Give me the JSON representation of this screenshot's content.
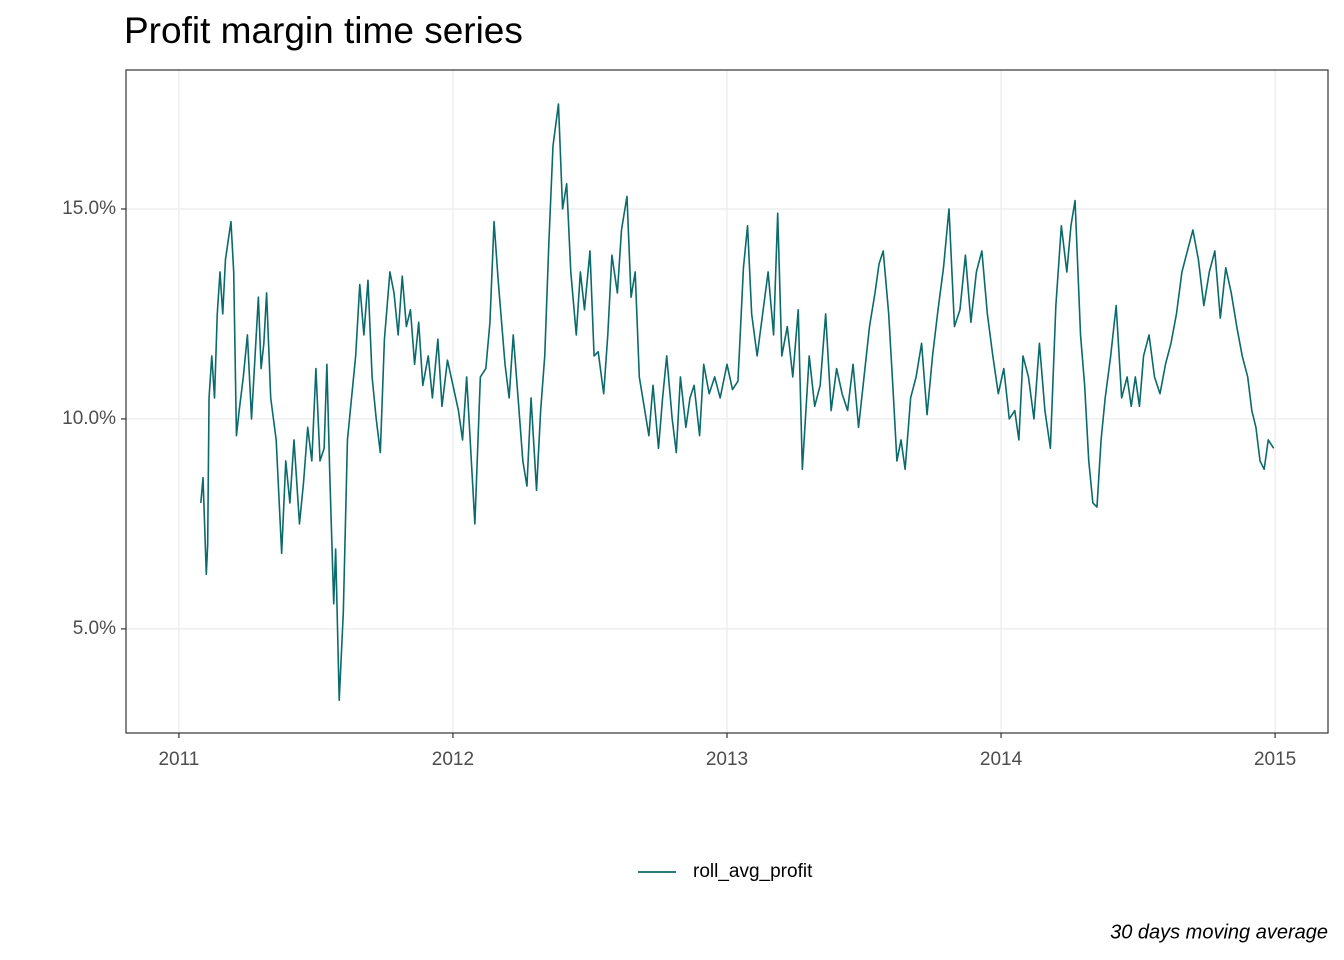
{
  "chart_data": {
    "type": "line",
    "title": "Profit margin time series",
    "caption": "30 days moving average",
    "x": [
      2011.08,
      2011.088,
      2011.1,
      2011.105,
      2011.11,
      2011.12,
      2011.13,
      2011.14,
      2011.15,
      2011.16,
      2011.17,
      2011.19,
      2011.2,
      2011.21,
      2011.22,
      2011.235,
      2011.25,
      2011.265,
      2011.29,
      2011.3,
      2011.31,
      2011.32,
      2011.335,
      2011.355,
      2011.375,
      2011.39,
      2011.405,
      2011.42,
      2011.44,
      2011.455,
      2011.47,
      2011.485,
      2011.5,
      2011.515,
      2011.53,
      2011.54,
      2011.55,
      2011.565,
      2011.572,
      2011.585,
      2011.6,
      2011.615,
      2011.63,
      2011.645,
      2011.66,
      2011.675,
      2011.69,
      2011.705,
      2011.72,
      2011.735,
      2011.75,
      2011.77,
      2011.785,
      2011.8,
      2011.815,
      2011.83,
      2011.845,
      2011.86,
      2011.875,
      2011.89,
      2011.91,
      2011.925,
      2011.945,
      2011.96,
      2011.98,
      2012.0,
      2012.02,
      2012.035,
      2012.05,
      2012.08,
      2012.1,
      2012.12,
      2012.135,
      2012.15,
      2012.165,
      2012.19,
      2012.205,
      2012.22,
      2012.24,
      2012.255,
      2012.27,
      2012.285,
      2012.305,
      2012.32,
      2012.335,
      2012.35,
      2012.365,
      2012.385,
      2012.4,
      2012.415,
      2012.43,
      2012.45,
      2012.465,
      2012.48,
      2012.5,
      2012.515,
      2012.53,
      2012.55,
      2012.565,
      2012.58,
      2012.6,
      2012.615,
      2012.635,
      2012.65,
      2012.665,
      2012.68,
      2012.7,
      2012.715,
      2012.73,
      2012.75,
      2012.765,
      2012.78,
      2012.8,
      2012.815,
      2012.83,
      2012.85,
      2012.865,
      2012.88,
      2012.9,
      2012.915,
      2012.935,
      2012.955,
      2012.975,
      2013.0,
      2013.02,
      2013.04,
      2013.06,
      2013.075,
      2013.09,
      2013.11,
      2013.13,
      2013.15,
      2013.17,
      2013.185,
      2013.2,
      2013.22,
      2013.24,
      2013.26,
      2013.275,
      2013.3,
      2013.32,
      2013.34,
      2013.36,
      2013.38,
      2013.4,
      2013.42,
      2013.44,
      2013.46,
      2013.48,
      2013.5,
      2013.52,
      2013.54,
      2013.555,
      2013.57,
      2013.59,
      2013.605,
      2013.62,
      2013.635,
      2013.65,
      2013.67,
      2013.69,
      2013.71,
      2013.73,
      2013.75,
      2013.77,
      2013.79,
      2013.81,
      2013.83,
      2013.85,
      2013.87,
      2013.89,
      2013.91,
      2013.93,
      2013.95,
      2013.97,
      2013.99,
      2014.01,
      2014.03,
      2014.05,
      2014.065,
      2014.08,
      2014.1,
      2014.12,
      2014.14,
      2014.16,
      2014.18,
      2014.2,
      2014.22,
      2014.24,
      2014.255,
      2014.27,
      2014.29,
      2014.305,
      2014.32,
      2014.335,
      2014.35,
      2014.365,
      2014.38,
      2014.4,
      2014.42,
      2014.44,
      2014.46,
      2014.475,
      2014.49,
      2014.505,
      2014.52,
      2014.54,
      2014.56,
      2014.58,
      2014.6,
      2014.62,
      2014.64,
      2014.66,
      2014.68,
      2014.7,
      2014.72,
      2014.74,
      2014.76,
      2014.78,
      2014.8,
      2014.82,
      2014.84,
      2014.86,
      2014.88,
      2014.9,
      2014.915,
      2014.93,
      2014.945,
      2014.96,
      2014.975,
      2014.995
    ],
    "series": [
      {
        "name": "roll_avg_profit",
        "color": "#0b6a6b",
        "values": [
          8.0,
          8.6,
          6.3,
          7.0,
          10.5,
          11.5,
          10.5,
          12.5,
          13.5,
          12.5,
          13.8,
          14.7,
          13.5,
          9.6,
          10.2,
          11.0,
          12.0,
          10.0,
          12.9,
          11.2,
          11.8,
          13.0,
          10.5,
          9.5,
          6.8,
          9.0,
          8.0,
          9.5,
          7.5,
          8.5,
          9.8,
          9.0,
          11.2,
          9.0,
          9.3,
          11.3,
          8.8,
          5.6,
          6.9,
          3.3,
          5.4,
          9.5,
          10.5,
          11.5,
          13.2,
          12.0,
          13.3,
          11.0,
          10.0,
          9.2,
          11.9,
          13.5,
          13.0,
          12.0,
          13.4,
          12.2,
          12.6,
          11.3,
          12.3,
          10.8,
          11.5,
          10.5,
          11.9,
          10.3,
          11.4,
          10.8,
          10.2,
          9.5,
          11.0,
          7.5,
          11.0,
          11.2,
          12.3,
          14.7,
          13.3,
          11.3,
          10.5,
          12.0,
          10.3,
          9.0,
          8.4,
          10.5,
          8.3,
          10.2,
          11.5,
          14.2,
          16.5,
          17.5,
          15.0,
          15.6,
          13.5,
          12.0,
          13.5,
          12.6,
          14.0,
          11.5,
          11.6,
          10.6,
          12.0,
          13.9,
          13.0,
          14.5,
          15.3,
          12.9,
          13.5,
          11.0,
          10.2,
          9.6,
          10.8,
          9.3,
          10.5,
          11.5,
          10.0,
          9.2,
          11.0,
          9.8,
          10.5,
          10.8,
          9.6,
          11.3,
          10.6,
          11.0,
          10.5,
          11.3,
          10.7,
          10.9,
          13.6,
          14.6,
          12.5,
          11.5,
          12.5,
          13.5,
          12.0,
          14.9,
          11.5,
          12.2,
          11.0,
          12.6,
          8.8,
          11.5,
          10.3,
          10.8,
          12.5,
          10.2,
          11.2,
          10.6,
          10.2,
          11.3,
          9.8,
          11.0,
          12.2,
          13.0,
          13.7,
          14.0,
          12.5,
          10.8,
          9.0,
          9.5,
          8.8,
          10.5,
          11.0,
          11.8,
          10.1,
          11.5,
          12.6,
          13.6,
          15.0,
          12.2,
          12.6,
          13.9,
          12.3,
          13.5,
          14.0,
          12.5,
          11.5,
          10.6,
          11.2,
          10.0,
          10.2,
          9.5,
          11.5,
          11.0,
          10.0,
          11.8,
          10.2,
          9.3,
          12.7,
          14.6,
          13.5,
          14.6,
          15.2,
          12.0,
          10.8,
          9.0,
          8.0,
          7.9,
          9.5,
          10.5,
          11.5,
          12.7,
          10.5,
          11.0,
          10.3,
          11.0,
          10.3,
          11.5,
          12.0,
          11.0,
          10.6,
          11.3,
          11.8,
          12.5,
          13.5,
          14.0,
          14.5,
          13.8,
          12.7,
          13.5,
          14.0,
          12.4,
          13.6,
          13.0,
          12.2,
          11.5,
          11.0,
          10.2,
          9.8,
          9.0,
          8.8,
          9.5,
          9.3
        ]
      }
    ],
    "xlim": [
      2010.807,
      2015.193
    ],
    "xticks": [
      2011,
      2012,
      2013,
      2014,
      2015
    ],
    "ylim": [
      2.52,
      18.31
    ],
    "yticks": [
      {
        "value": 5,
        "label": "5.0%"
      },
      {
        "value": 10,
        "label": "10.0%"
      },
      {
        "value": 15,
        "label": "15.0%"
      }
    ],
    "grid": true,
    "legend": "bottom"
  }
}
